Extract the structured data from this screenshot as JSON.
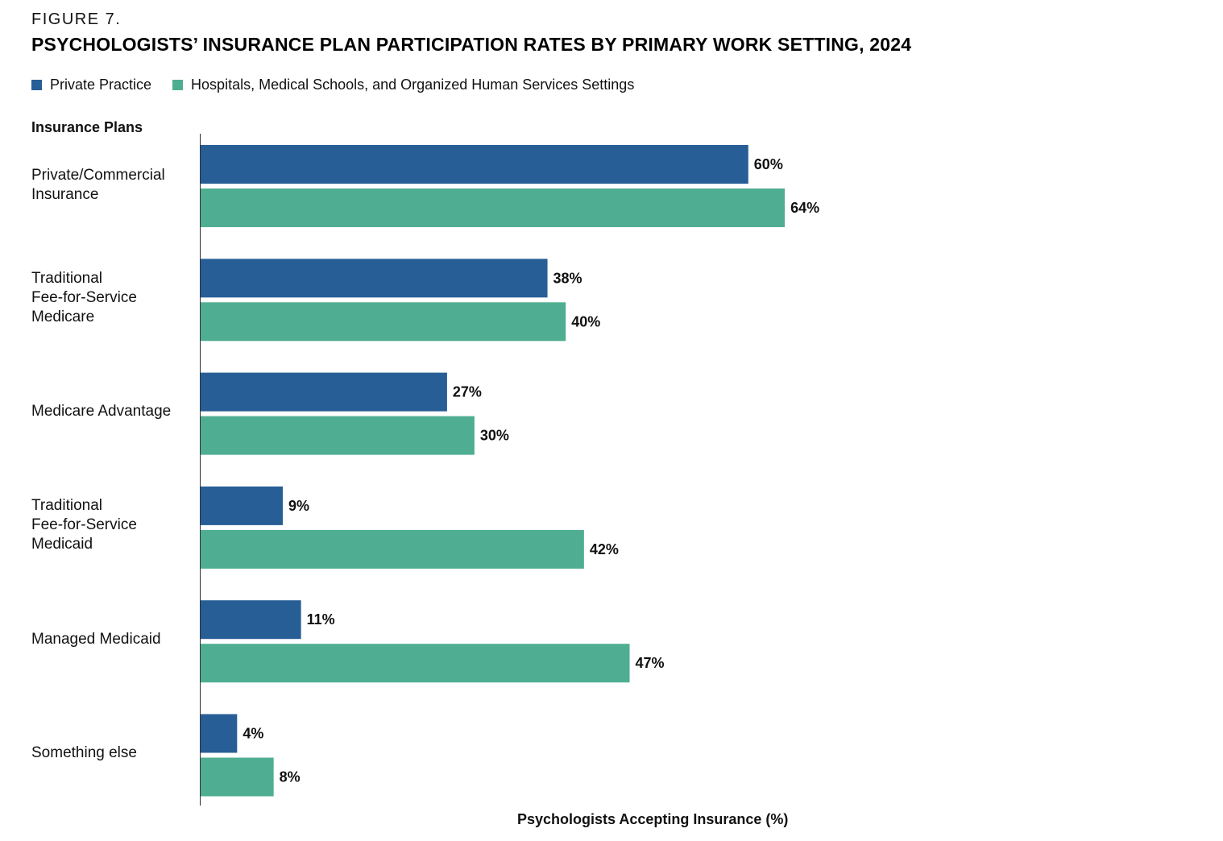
{
  "figure_label": "FIGURE 7.",
  "chart_data": {
    "type": "bar",
    "orientation": "horizontal",
    "title": "PSYCHOLOGISTS’ INSURANCE PLAN PARTICIPATION RATES BY PRIMARY WORK SETTING, 2024",
    "category_axis_title": "Insurance Plans",
    "xlabel": "Psychologists Accepting Insurance (%)",
    "xlim": [
      0,
      100
    ],
    "grid": false,
    "legend_position": "top-left",
    "categories": [
      "Private/Commercial\nInsurance",
      "Traditional\nFee-for-Service\nMedicare",
      "Medicare Advantage",
      "Traditional\nFee-for-Service\nMedicaid",
      "Managed Medicaid",
      "Something else"
    ],
    "series": [
      {
        "name": "Private Practice",
        "color": "#275e96",
        "values": [
          60,
          38,
          27,
          9,
          11,
          4
        ],
        "labels": [
          "60%",
          "38%",
          "27%",
          "9%",
          "11%",
          "4%"
        ]
      },
      {
        "name": "Hospitals, Medical Schools, and Organized Human Services Settings",
        "color": "#4fae92",
        "values": [
          64,
          40,
          30,
          42,
          47,
          8
        ],
        "labels": [
          "64%",
          "40%",
          "30%",
          "42%",
          "47%",
          "8%"
        ]
      }
    ]
  }
}
